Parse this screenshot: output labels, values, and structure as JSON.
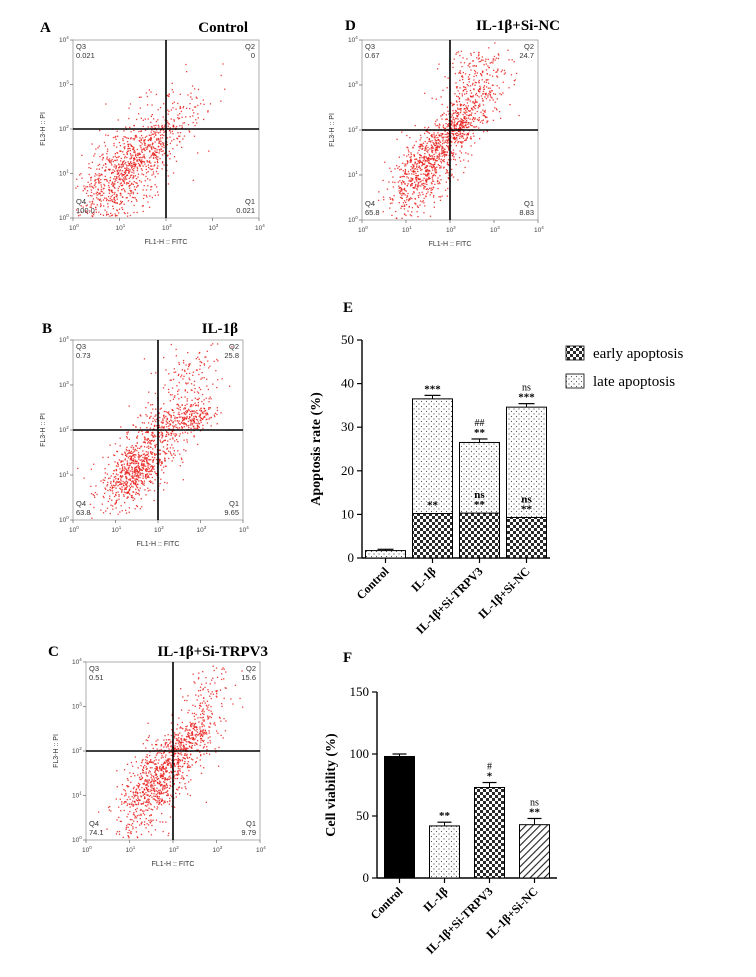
{
  "figure": {
    "background": "#ffffff",
    "dot_color": "#e8201c"
  },
  "chart_data": [
    {
      "type": "scatter",
      "panel": "A",
      "title": "Control",
      "xlabel": "FL1-H :: FITC",
      "ylabel": "FL3-H :: PI",
      "scale": "log",
      "ticks": [
        "10",
        "10",
        "10",
        "10",
        "10"
      ],
      "tick_exps": [
        "0",
        "1",
        "2",
        "3",
        "4"
      ],
      "gate": {
        "x_decade": 2.0,
        "y_decade": 2.0
      },
      "quadrants": {
        "Q1": "0.021",
        "Q2": "0",
        "Q3": "0.021",
        "Q4": "100.0"
      },
      "quadrant_names": [
        "Q1",
        "Q2",
        "Q3",
        "Q4"
      ],
      "populations": [
        {
          "cx": 1.0,
          "cy": 0.9,
          "spread": [
            0.7,
            0.6
          ],
          "slope": 0.95,
          "n": 900
        },
        {
          "cx": 1.6,
          "cy": 1.5,
          "spread": [
            0.6,
            0.25
          ],
          "slope": 0.9,
          "n": 300
        }
      ]
    },
    {
      "type": "scatter",
      "panel": "B",
      "title": "IL-1β",
      "xlabel": "FL1-H :: FITC",
      "ylabel": "FL3-H :: PI",
      "scale": "log",
      "ticks": [
        "10",
        "10",
        "10",
        "10",
        "10"
      ],
      "tick_exps": [
        "0",
        "1",
        "2",
        "3",
        "4"
      ],
      "gate": {
        "x_decade": 2.0,
        "y_decade": 2.0
      },
      "quadrants": {
        "Q1": "9.65",
        "Q2": "25.8",
        "Q3": "0.73",
        "Q4": "63.8"
      },
      "quadrant_names": [
        "Q1",
        "Q2",
        "Q3",
        "Q4"
      ],
      "populations": [
        {
          "cx": 1.45,
          "cy": 1.1,
          "spread": [
            0.4,
            0.35
          ],
          "slope": 0.5,
          "n": 700
        },
        {
          "cx": 2.2,
          "cy": 2.1,
          "spread": [
            0.45,
            0.2
          ],
          "slope": 0.3,
          "n": 250
        },
        {
          "cx": 2.6,
          "cy": 2.9,
          "spread": [
            0.45,
            0.55
          ],
          "slope": 0.5,
          "n": 200
        },
        {
          "cx": 2.9,
          "cy": 2.3,
          "spread": [
            0.2,
            0.2
          ],
          "slope": 0.4,
          "n": 100
        }
      ]
    },
    {
      "type": "scatter",
      "panel": "C",
      "title": "IL-1β+Si-TRPV3",
      "xlabel": "FL1-H :: FITC",
      "ylabel": "FL3-H :: PI",
      "scale": "log",
      "ticks": [
        "10",
        "10",
        "10",
        "10",
        "10"
      ],
      "tick_exps": [
        "0",
        "1",
        "2",
        "3",
        "4"
      ],
      "gate": {
        "x_decade": 2.0,
        "y_decade": 2.0
      },
      "quadrants": {
        "Q1": "9.79",
        "Q2": "15.6",
        "Q3": "0.51",
        "Q4": "74.1"
      },
      "quadrant_names": [
        "Q1",
        "Q2",
        "Q3",
        "Q4"
      ],
      "populations": [
        {
          "cx": 1.6,
          "cy": 1.3,
          "spread": [
            0.45,
            0.45
          ],
          "slope": 0.8,
          "n": 800
        },
        {
          "cx": 2.3,
          "cy": 2.2,
          "spread": [
            0.3,
            0.25
          ],
          "slope": 0.8,
          "n": 250
        },
        {
          "cx": 2.8,
          "cy": 3.1,
          "spread": [
            0.3,
            0.5
          ],
          "slope": 0.6,
          "n": 150
        }
      ]
    },
    {
      "type": "scatter",
      "panel": "D",
      "title": "IL-1β+Si-NC",
      "xlabel": "FL1-H :: FITC",
      "ylabel": "FL3-H :: PI",
      "scale": "log",
      "ticks": [
        "10",
        "10",
        "10",
        "10",
        "10"
      ],
      "tick_exps": [
        "0",
        "1",
        "2",
        "3",
        "4"
      ],
      "gate": {
        "x_decade": 2.0,
        "y_decade": 2.0
      },
      "quadrants": {
        "Q1": "8.83",
        "Q2": "24.7",
        "Q3": "0.67",
        "Q4": "65.8"
      },
      "quadrant_names": [
        "Q1",
        "Q2",
        "Q3",
        "Q4"
      ],
      "populations": [
        {
          "cx": 1.45,
          "cy": 1.2,
          "spread": [
            0.45,
            0.4
          ],
          "slope": 0.8,
          "n": 750
        },
        {
          "cx": 2.2,
          "cy": 2.15,
          "spread": [
            0.35,
            0.25
          ],
          "slope": 0.7,
          "n": 350
        },
        {
          "cx": 2.6,
          "cy": 3.0,
          "spread": [
            0.4,
            0.55
          ],
          "slope": 0.5,
          "n": 300
        }
      ]
    },
    {
      "type": "bar",
      "stacked": true,
      "panel": "E",
      "categories": [
        "Control",
        "IL-1β",
        "IL-1β+Si-TRPV3",
        "IL-1β+Si-NC"
      ],
      "series": [
        {
          "name": "early apoptosis",
          "pattern": "checker",
          "values": [
            0.0,
            10.2,
            10.3,
            9.3
          ],
          "errors": [
            0,
            0.5,
            0.5,
            0.5
          ]
        },
        {
          "name": "late apoptosis",
          "pattern": "dots",
          "values": [
            1.7,
            26.3,
            16.2,
            25.3
          ],
          "errors": [
            0.3,
            0.8,
            0.8,
            0.8
          ]
        }
      ],
      "ylabel": "Apoptosis rate (%)",
      "ylim": [
        0,
        50
      ],
      "yticks": [
        "0",
        "10",
        "20",
        "30",
        "40",
        "50"
      ],
      "annotations": {
        "early": [
          {
            "category": "IL-1β",
            "lines": [
              "**"
            ]
          },
          {
            "category": "IL-1β+Si-TRPV3",
            "lines": [
              "ns",
              "**"
            ]
          },
          {
            "category": "IL-1β+Si-NC",
            "lines": [
              "ns",
              "**"
            ]
          }
        ],
        "total": [
          {
            "category": "IL-1β",
            "lines": [
              "***"
            ]
          },
          {
            "category": "IL-1β+Si-TRPV3",
            "lines": [
              "##",
              "**"
            ]
          },
          {
            "category": "IL-1β+Si-NC",
            "lines": [
              "ns",
              "***"
            ]
          }
        ]
      },
      "legend_position": "top-right"
    },
    {
      "type": "bar",
      "panel": "F",
      "categories": [
        "Control",
        "IL-1β",
        "IL-1β+Si-TRPV3",
        "IL-1β+Si-NC"
      ],
      "values": [
        98,
        42,
        73,
        43
      ],
      "errors": [
        2,
        3,
        4,
        5
      ],
      "patterns": [
        "solid",
        "dots",
        "checker",
        "hatch"
      ],
      "ylabel": "Cell viability (%)",
      "ylim": [
        0,
        150
      ],
      "yticks": [
        "0",
        "50",
        "100",
        "150"
      ],
      "annotations": [
        {
          "category": "IL-1β",
          "lines": [
            "**"
          ]
        },
        {
          "category": "IL-1β+Si-TRPV3",
          "lines": [
            "#",
            "*"
          ]
        },
        {
          "category": "IL-1β+Si-NC",
          "lines": [
            "ns",
            "**"
          ]
        }
      ]
    }
  ]
}
